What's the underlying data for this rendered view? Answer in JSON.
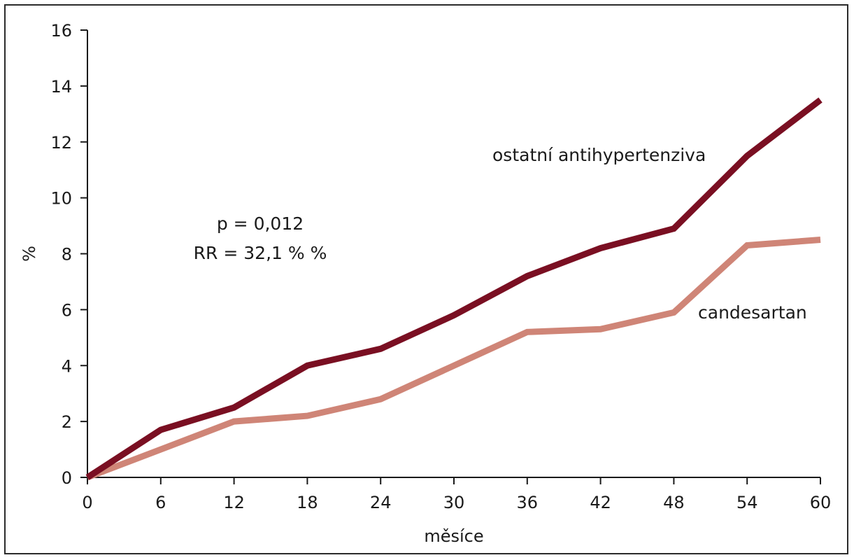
{
  "chart_data": {
    "type": "line",
    "title": "",
    "xlabel": "měsíce",
    "ylabel": "%",
    "xlim": [
      0,
      60
    ],
    "ylim": [
      0,
      16
    ],
    "x": [
      0,
      6,
      12,
      18,
      24,
      30,
      36,
      42,
      48,
      54,
      60
    ],
    "x_ticks": [
      "0",
      "6",
      "12",
      "18",
      "24",
      "30",
      "36",
      "42",
      "48",
      "54",
      "60"
    ],
    "y_ticks": [
      "0",
      "2",
      "4",
      "6",
      "8",
      "10",
      "12",
      "14",
      "16"
    ],
    "grid": false,
    "legend": "none",
    "series": [
      {
        "name": "ostatní antihypertenziva",
        "color": "#7a0f22",
        "values": [
          0,
          1.7,
          2.5,
          4.0,
          4.6,
          5.8,
          7.2,
          8.2,
          8.9,
          11.5,
          13.5
        ]
      },
      {
        "name": "candesartan",
        "color": "#cf8577",
        "values": [
          0,
          1.0,
          2.0,
          2.2,
          2.8,
          4.0,
          5.2,
          5.3,
          5.9,
          8.3,
          8.5
        ]
      }
    ],
    "annotations": [
      "p = 0,012",
      "RR = 32,1 % %"
    ]
  }
}
